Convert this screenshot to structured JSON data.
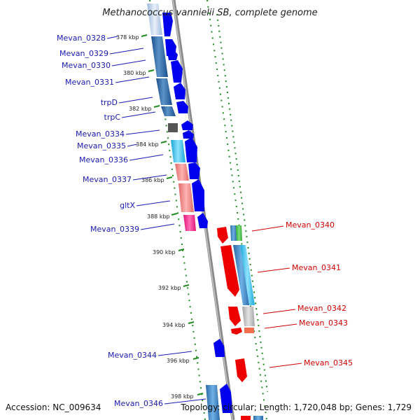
{
  "title": "Methanococcus vannielii SB, complete genome",
  "footer": {
    "accession": "Accession: NC_009634",
    "topology": "Topology: circular; Length: 1,720,048 bp; Genes: 1,729"
  },
  "ticks": [
    "378 kbp",
    "380 kbp",
    "382 kbp",
    "384 kbp",
    "386 kbp",
    "388 kbp",
    "390 kbp",
    "392 kbp",
    "394 kbp",
    "396 kbp",
    "398 kbp"
  ],
  "genes_left": [
    "Mevan_0328",
    "Mevan_0329",
    "Mevan_0330",
    "Mevan_0331",
    "trpD",
    "trpC",
    "Mevan_0334",
    "Mevan_0335",
    "Mevan_0336",
    "Mevan_0337",
    "gltX",
    "Mevan_0339",
    "Mevan_0344",
    "Mevan_0346"
  ],
  "genes_right": [
    "Mevan_0340",
    "Mevan_0341",
    "Mevan_0342",
    "Mevan_0343",
    "Mevan_0345"
  ],
  "colors": {
    "forward_strand": "#0000ee",
    "reverse_strand": "#ee0000",
    "axis": "#888888",
    "tick_dots": "#228b22",
    "left_label": "#1a1ab0",
    "right_label": "#d00000"
  }
}
